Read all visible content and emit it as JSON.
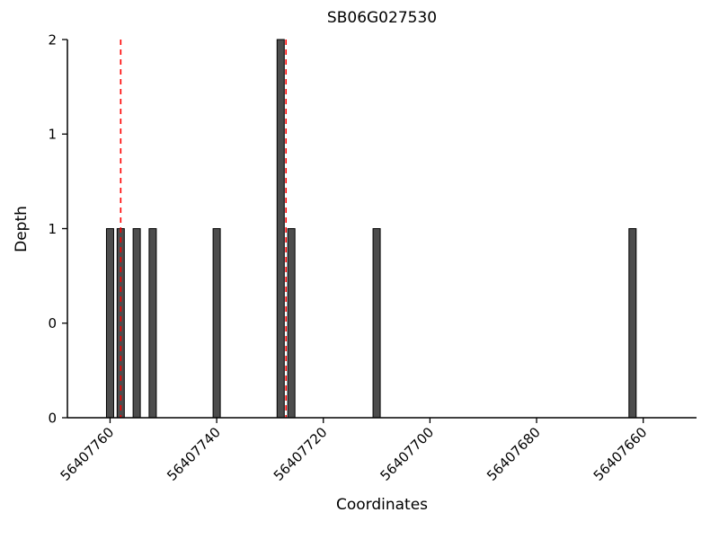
{
  "chart_data": {
    "type": "bar",
    "title": "SB06G027530",
    "xlabel": "Coordinates",
    "ylabel": "Depth",
    "x_axis_reversed": true,
    "xlim": [
      56407768,
      56407650
    ],
    "ylim": [
      0,
      2
    ],
    "x_ticks": [
      56407760,
      56407740,
      56407720,
      56407700,
      56407680,
      56407660
    ],
    "x_tick_labels": [
      "56407760",
      "56407740",
      "56407720",
      "56407700",
      "56407680",
      "56407660"
    ],
    "y_ticks": [
      0,
      0.5,
      1,
      1.5,
      2
    ],
    "y_tick_labels": [
      "0",
      "0",
      "1",
      "1",
      "2"
    ],
    "bars": [
      {
        "x": 56407760,
        "depth": 1
      },
      {
        "x": 56407758,
        "depth": 1
      },
      {
        "x": 56407755,
        "depth": 1
      },
      {
        "x": 56407752,
        "depth": 1
      },
      {
        "x": 56407740,
        "depth": 1
      },
      {
        "x": 56407728,
        "depth": 2
      },
      {
        "x": 56407726,
        "depth": 1
      },
      {
        "x": 56407710,
        "depth": 1
      },
      {
        "x": 56407662,
        "depth": 1
      }
    ],
    "bar_width": 1.35,
    "vlines": [
      {
        "x": 56407758,
        "style": "dashed"
      },
      {
        "x": 56407727,
        "style": "dashed"
      }
    ],
    "colors": {
      "bar_fill": "#4d4d4d",
      "bar_edge": "#000000",
      "vline": "#ff0000",
      "axis": "#000000"
    },
    "legend": null,
    "grid": false
  }
}
